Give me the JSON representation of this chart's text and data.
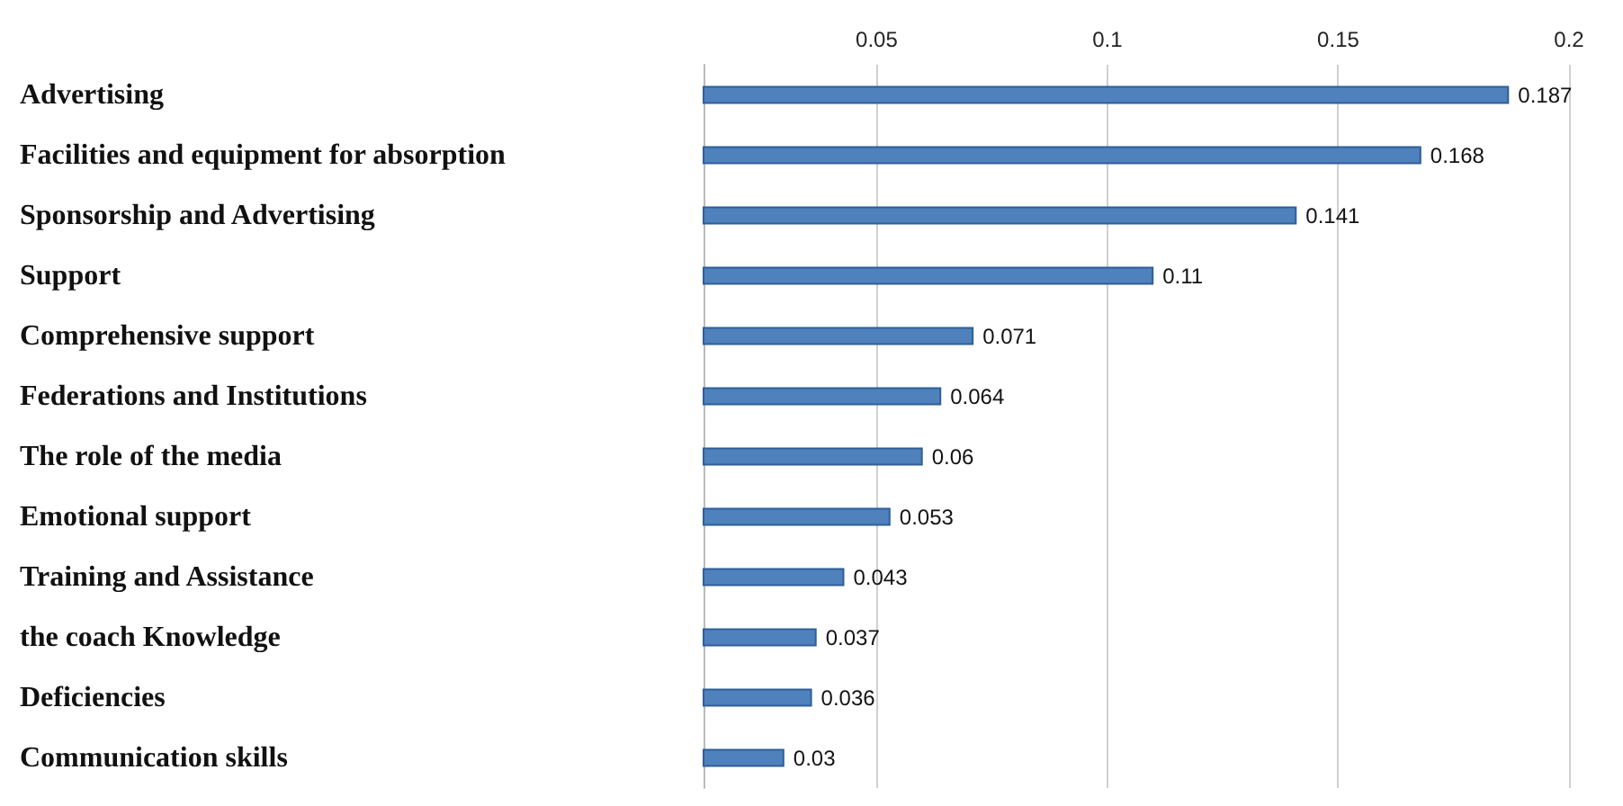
{
  "chart_data": {
    "type": "bar",
    "orientation": "horizontal",
    "categories": [
      "Advertising",
      "Facilities and equipment for absorption",
      "Sponsorship and Advertising",
      "Support",
      "Comprehensive support",
      "Federations and Institutions",
      "The role of the media",
      "Emotional support",
      "Training and Assistance",
      "the coach Knowledge",
      "Deficiencies",
      "Communication skills"
    ],
    "values": [
      0.187,
      0.168,
      0.141,
      0.11,
      0.071,
      0.064,
      0.06,
      0.053,
      0.043,
      0.037,
      0.036,
      0.03
    ],
    "color": "#4f81bd",
    "xlim": [
      0.0125,
      0.2
    ],
    "xticks": [
      0.05,
      0.1,
      0.15,
      0.2
    ],
    "grid": "x",
    "data_labels": true
  }
}
